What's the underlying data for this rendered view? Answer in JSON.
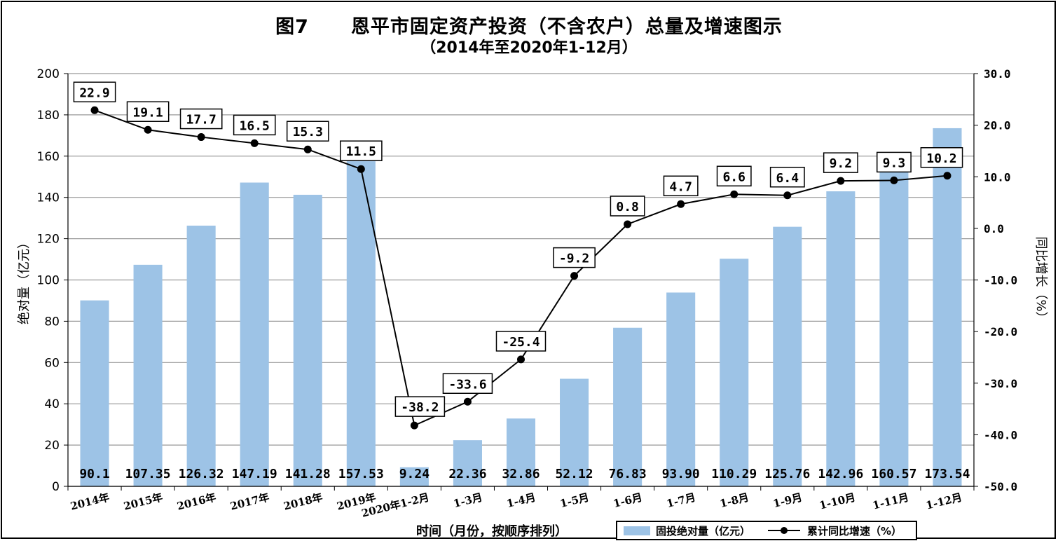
{
  "chart_data": {
    "type": "bar+line",
    "title_prefix": "图7",
    "title": "恩平市固定资产投资（不含农户）总量及增速图示",
    "subtitle": "（2014年至2020年1-12月）",
    "xlabel": "时间（月份，按顺序排列）",
    "ylabel_left": "绝对量（亿元）",
    "ylabel_right": "同比增长（%）",
    "ylim_left": [
      0,
      200
    ],
    "ylim_right": [
      -50,
      30
    ],
    "yticks_left": [
      0,
      20,
      40,
      60,
      80,
      100,
      120,
      140,
      160,
      180,
      200
    ],
    "yticks_right": [
      "-50.0",
      "-40.0",
      "-30.0",
      "-20.0",
      "-10.0",
      "0.0",
      "10.0",
      "20.0",
      "30.0"
    ],
    "categories": [
      "2014年",
      "2015年",
      "2016年",
      "2017年",
      "2018年",
      "2019年",
      "2020年1-2月",
      "1-3月",
      "1-4月",
      "1-5月",
      "1-6月",
      "1-7月",
      "1-8月",
      "1-9月",
      "1-10月",
      "1-11月",
      "1-12月"
    ],
    "grid": true,
    "legend_position": "bottom-right",
    "series": [
      {
        "name": "固投绝对量（亿元）",
        "type": "bar",
        "axis": "left",
        "color": "#9dc3e6",
        "values": [
          90.1,
          107.35,
          126.32,
          147.19,
          141.28,
          157.53,
          9.24,
          22.36,
          32.86,
          52.12,
          76.83,
          93.9,
          110.29,
          125.76,
          142.96,
          160.57,
          173.54
        ],
        "labels": [
          "90.1",
          "107.35",
          "126.32",
          "147.19",
          "141.28",
          "157.53",
          "9.24",
          "22.36",
          "32.86",
          "52.12",
          "76.83",
          "93.90",
          "110.29",
          "125.76",
          "142.96",
          "160.57",
          "173.54"
        ]
      },
      {
        "name": "累计同比增速（%）",
        "type": "line",
        "axis": "right",
        "color": "#000000",
        "values": [
          22.9,
          19.1,
          17.7,
          16.5,
          15.3,
          11.5,
          -38.2,
          -33.6,
          -25.4,
          -9.2,
          0.8,
          4.7,
          6.6,
          6.4,
          9.2,
          9.3,
          10.2
        ],
        "labels": [
          "22.9",
          "19.1",
          "17.7",
          "16.5",
          "15.3",
          "11.5",
          "-38.2",
          "-33.6",
          "-25.4",
          "-9.2",
          "0.8",
          "4.7",
          "6.6",
          "6.4",
          "9.2",
          "9.3",
          "10.2"
        ]
      }
    ]
  }
}
